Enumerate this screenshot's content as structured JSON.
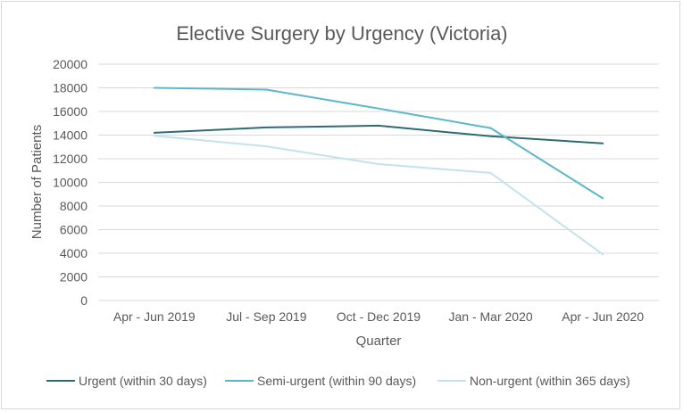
{
  "chart_data": {
    "type": "line",
    "title": "Elective Surgery by Urgency (Victoria)",
    "xlabel": "Quarter",
    "ylabel": "Number of Patients",
    "categories": [
      "Apr - Jun 2019",
      "Jul - Sep 2019",
      "Oct - Dec 2019",
      "Jan - Mar 2020",
      "Apr - Jun 2020"
    ],
    "ylim": [
      0,
      20000
    ],
    "yticks": [
      0,
      2000,
      4000,
      6000,
      8000,
      10000,
      12000,
      14000,
      16000,
      18000,
      20000
    ],
    "grid": true,
    "legend_position": "bottom",
    "series": [
      {
        "name": "Urgent (within 30 days)",
        "color": "#2e6b73",
        "values": [
          14200,
          14650,
          14800,
          13900,
          13300
        ]
      },
      {
        "name": "Semi-urgent (within 90 days)",
        "color": "#5bb7c9",
        "values": [
          18000,
          17850,
          16250,
          14600,
          8650
        ]
      },
      {
        "name": "Non-urgent (within 365 days)",
        "color": "#c3e3ea",
        "values": [
          13950,
          13050,
          11550,
          10800,
          3900
        ]
      }
    ]
  }
}
